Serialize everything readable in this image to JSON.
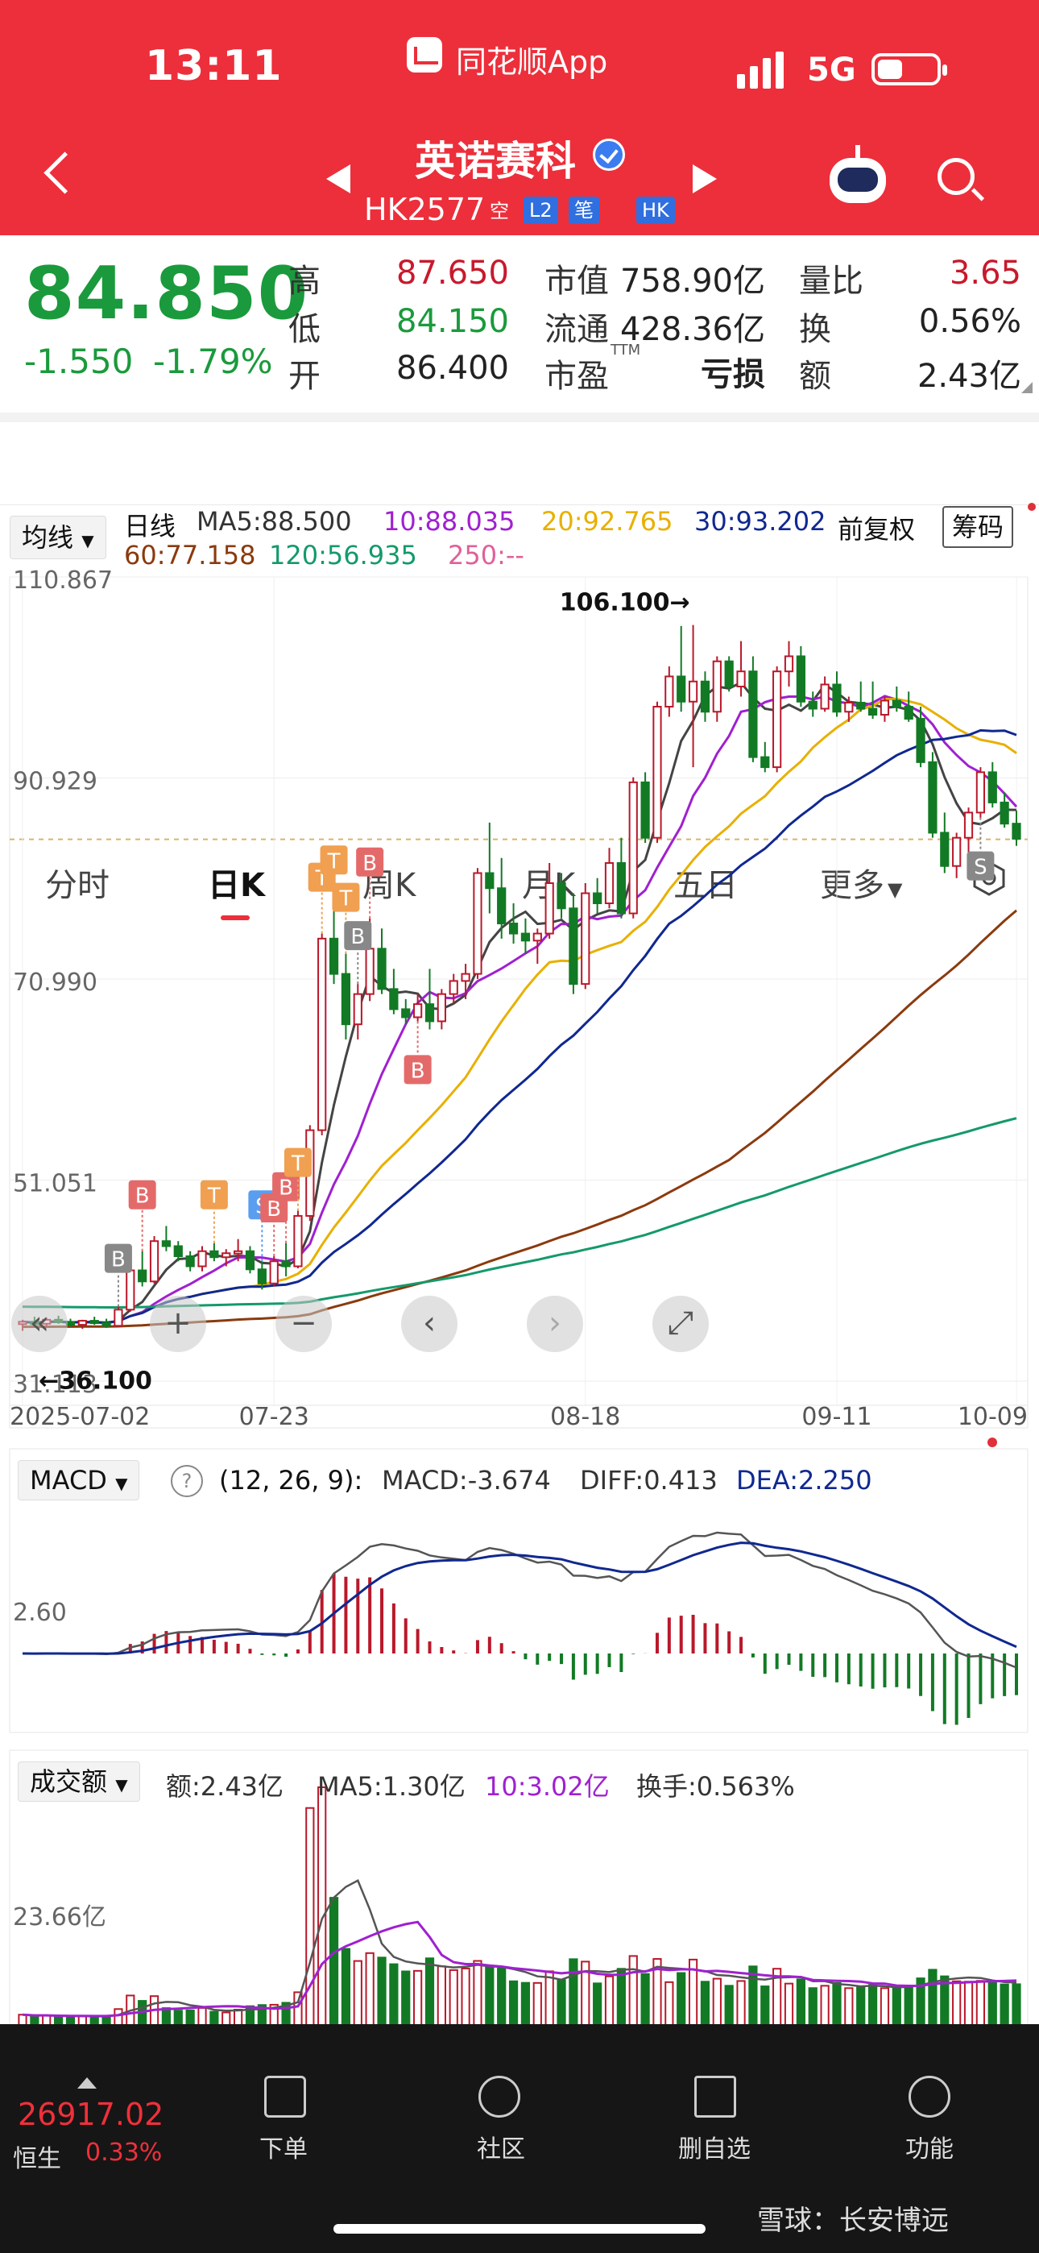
{
  "status_bar": {
    "time": "13:11",
    "app_name": "同花顺App",
    "network": "5G"
  },
  "header": {
    "title": "英诺赛科",
    "code": "HK2577",
    "code_suffix": "空",
    "tags": [
      "L2",
      "笔",
      "HK"
    ]
  },
  "quote": {
    "price": "84.850",
    "change": "-1.550",
    "change_pct": "-1.79%",
    "high_label": "高",
    "high": "87.650",
    "low_label": "低",
    "low": "84.150",
    "open_label": "开",
    "open": "86.400",
    "mktcap_label": "市值",
    "mktcap": "758.90亿",
    "float_label": "流通",
    "float": "428.36亿",
    "pe_label": "市盈",
    "pe_sup": "TTM",
    "pe": "亏损",
    "volratio_label": "量比",
    "volratio": "3.65",
    "turnover_label": "换",
    "turnover": "0.56%",
    "amount_label": "额",
    "amount": "2.43亿"
  },
  "tabs": [
    "分时",
    "日K",
    "周K",
    "月K",
    "五日",
    "更多"
  ],
  "active_tab": "日K",
  "kline_header": {
    "indicator": "均线",
    "period": "日线",
    "ma5": "MA5:88.500",
    "ma10": "10:88.035",
    "ma20": "20:92.765",
    "ma30": "30:93.202",
    "ma60": "60:77.158",
    "ma120": "120:56.935",
    "ma250": "250:--",
    "adjust": "前复权",
    "chips": "筹码"
  },
  "chart_data": {
    "type": "candlestick",
    "y_ticks": [
      "110.867",
      "90.929",
      "70.990",
      "51.051",
      "31.113"
    ],
    "ylim": [
      31.113,
      110.867
    ],
    "x_labels": [
      "2025-07-02",
      "07-23",
      "08-18",
      "09-11",
      "10-09"
    ],
    "max_label": "106.100→",
    "min_label": "←36.100",
    "last_price": 84.85,
    "candles": [
      [
        36.9,
        37.2,
        36.1,
        37.0
      ],
      [
        37.0,
        37.5,
        36.6,
        36.8
      ],
      [
        36.8,
        37.4,
        36.4,
        37.2
      ],
      [
        37.2,
        37.6,
        36.8,
        37.0
      ],
      [
        37.0,
        37.3,
        36.5,
        36.7
      ],
      [
        36.7,
        37.2,
        36.3,
        37.1
      ],
      [
        37.1,
        37.5,
        36.7,
        36.9
      ],
      [
        36.9,
        37.3,
        36.4,
        36.6
      ],
      [
        36.6,
        38.5,
        36.5,
        38.2
      ],
      [
        38.2,
        42.5,
        38.0,
        42.1
      ],
      [
        42.1,
        44.0,
        40.5,
        41.0
      ],
      [
        41.0,
        45.5,
        40.8,
        45.0
      ],
      [
        45.0,
        46.5,
        44.0,
        44.5
      ],
      [
        44.5,
        45.0,
        43.0,
        43.5
      ],
      [
        43.5,
        44.0,
        42.0,
        42.5
      ],
      [
        42.5,
        44.5,
        42.0,
        44.0
      ],
      [
        44.0,
        44.8,
        43.0,
        43.4
      ],
      [
        43.4,
        44.2,
        42.5,
        43.8
      ],
      [
        43.8,
        45.2,
        43.0,
        44.0
      ],
      [
        44.0,
        44.5,
        41.8,
        42.2
      ],
      [
        42.2,
        43.0,
        40.2,
        40.8
      ],
      [
        40.8,
        43.5,
        40.5,
        43.0
      ],
      [
        43.0,
        44.8,
        41.5,
        42.5
      ],
      [
        42.5,
        48.0,
        42.3,
        47.5
      ],
      [
        47.5,
        56.5,
        47.0,
        56.0
      ],
      [
        56.0,
        75.5,
        55.5,
        75.0
      ],
      [
        75.0,
        78.0,
        70.5,
        71.5
      ],
      [
        71.5,
        73.5,
        65.0,
        66.5
      ],
      [
        66.5,
        70.5,
        65.0,
        69.5
      ],
      [
        69.5,
        77.0,
        68.8,
        74.0
      ],
      [
        74.0,
        76.0,
        69.5,
        70.0
      ],
      [
        70.0,
        72.0,
        67.5,
        68.0
      ],
      [
        68.0,
        69.0,
        66.5,
        67.2
      ],
      [
        67.2,
        69.5,
        66.8,
        68.5
      ],
      [
        68.5,
        72.0,
        66.0,
        66.8
      ],
      [
        66.8,
        70.0,
        66.0,
        69.5
      ],
      [
        69.5,
        71.5,
        68.5,
        70.8
      ],
      [
        70.8,
        72.5,
        69.0,
        71.5
      ],
      [
        71.5,
        82.0,
        71.0,
        81.5
      ],
      [
        81.5,
        86.5,
        77.5,
        80.0
      ],
      [
        80.0,
        83.0,
        75.0,
        76.5
      ],
      [
        76.5,
        78.5,
        74.5,
        75.5
      ],
      [
        75.5,
        77.0,
        73.5,
        74.8
      ],
      [
        74.8,
        76.0,
        72.5,
        75.5
      ],
      [
        75.5,
        82.5,
        75.0,
        80.5
      ],
      [
        80.5,
        81.5,
        77.0,
        78.0
      ],
      [
        78.0,
        79.5,
        69.5,
        70.5
      ],
      [
        70.5,
        80.5,
        70.0,
        79.5
      ],
      [
        79.5,
        81.0,
        77.5,
        78.5
      ],
      [
        78.5,
        84.0,
        78.0,
        82.5
      ],
      [
        82.5,
        85.0,
        77.0,
        77.5
      ],
      [
        77.5,
        91.0,
        77.0,
        90.5
      ],
      [
        90.5,
        91.5,
        84.5,
        85.0
      ],
      [
        85.0,
        98.5,
        84.5,
        98.0
      ],
      [
        98.0,
        102.0,
        97.0,
        101.0
      ],
      [
        101.0,
        106.0,
        97.5,
        98.5
      ],
      [
        98.5,
        106.1,
        92.0,
        100.5
      ],
      [
        100.5,
        101.5,
        96.5,
        97.5
      ],
      [
        97.5,
        103.0,
        96.5,
        102.5
      ],
      [
        102.5,
        103.0,
        99.5,
        100.0
      ],
      [
        100.0,
        104.5,
        99.0,
        101.5
      ],
      [
        101.5,
        103.0,
        92.5,
        93.0
      ],
      [
        93.0,
        94.5,
        91.5,
        92.0
      ],
      [
        92.0,
        102.0,
        91.5,
        101.5
      ],
      [
        101.5,
        104.5,
        100.0,
        103.0
      ],
      [
        103.0,
        104.0,
        98.0,
        98.5
      ],
      [
        98.5,
        99.5,
        97.0,
        97.8
      ],
      [
        97.8,
        101.0,
        97.5,
        100.2
      ],
      [
        100.2,
        101.5,
        97.0,
        97.5
      ],
      [
        97.5,
        99.0,
        96.5,
        98.4
      ],
      [
        98.4,
        100.5,
        97.5,
        97.8
      ],
      [
        97.8,
        100.5,
        96.8,
        97.2
      ],
      [
        97.2,
        99.0,
        96.5,
        98.6
      ],
      [
        98.6,
        100.0,
        97.5,
        98.0
      ],
      [
        98.0,
        99.5,
        96.5,
        96.8
      ],
      [
        96.8,
        98.0,
        92.0,
        92.5
      ],
      [
        92.5,
        93.5,
        85.0,
        85.5
      ],
      [
        85.5,
        87.5,
        81.5,
        82.2
      ],
      [
        82.2,
        85.5,
        81.0,
        85.0
      ],
      [
        85.0,
        88.0,
        83.5,
        87.5
      ],
      [
        87.5,
        92.0,
        87.0,
        91.5
      ],
      [
        91.5,
        92.5,
        88.0,
        88.5
      ],
      [
        88.5,
        89.5,
        86.0,
        86.4
      ],
      [
        86.4,
        87.7,
        84.2,
        84.9
      ]
    ]
  },
  "macd": {
    "label": "MACD",
    "params": "(12, 26, 9):",
    "macd": "MACD:-3.674",
    "diff": "DIFF:0.413",
    "dea": "DEA:2.250",
    "tick": "2.60"
  },
  "volume": {
    "label": "成交额",
    "amount": "额:2.43亿",
    "ma5": "MA5:1.30亿",
    "ma10": "10:3.02亿",
    "turnover": "换手:0.563%",
    "tick": "23.66亿"
  },
  "bottom_nav": {
    "index_value": "26917.02",
    "index_name": "恒生",
    "index_change": "0.33%",
    "items": [
      "下单",
      "社区",
      "删自选",
      "功能"
    ]
  },
  "watermark": "雪球：长安博远",
  "colors": {
    "header_red": "#ec2f3b",
    "up": "#b9182a",
    "down": "#127a24",
    "ma5": "#444444",
    "ma10": "#a020d0",
    "ma20": "#e8b000",
    "ma30": "#102890",
    "ma60": "#8b3a0e",
    "ma120": "#149a6a",
    "ma250": "#e0609a"
  }
}
